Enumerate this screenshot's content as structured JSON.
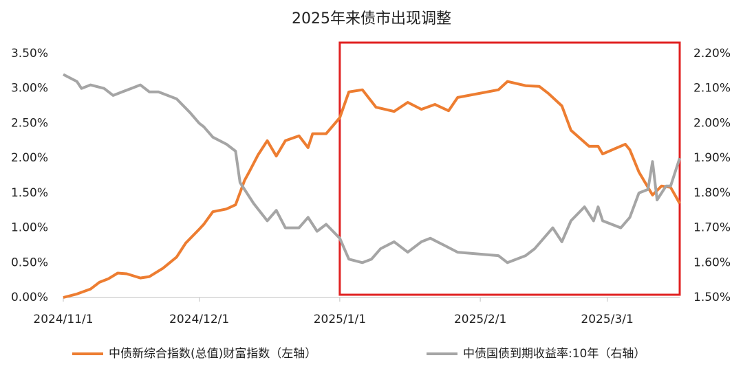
{
  "chart_data": {
    "type": "line",
    "title": "2025年来债市出现调整",
    "xlim": [
      "2024/11/1",
      "2025/3/17"
    ],
    "xticks": [
      "2024/11/1",
      "2024/12/1",
      "2025/1/1",
      "2025/2/1",
      "2025/3/1"
    ],
    "ylim": [
      0,
      3.5
    ],
    "yticks": [
      {
        "value": 0,
        "label": "0.00%"
      },
      {
        "value": 0.5,
        "label": "0.50%"
      },
      {
        "value": 1,
        "label": "1.00%"
      },
      {
        "value": 1.5,
        "label": "1.50%"
      },
      {
        "value": 2,
        "label": "2.00%"
      },
      {
        "value": 2.5,
        "label": "2.50%"
      },
      {
        "value": 3,
        "label": "3.00%"
      },
      {
        "value": 3.5,
        "label": "3.50%"
      }
    ],
    "y2lim": [
      1.5,
      2.2
    ],
    "y2ticks": [
      {
        "value": 1.5,
        "label": "1.50%"
      },
      {
        "value": 1.6,
        "label": "1.60%"
      },
      {
        "value": 1.7,
        "label": "1.70%"
      },
      {
        "value": 1.8,
        "label": "1.80%"
      },
      {
        "value": 1.9,
        "label": "1.90%"
      },
      {
        "value": 2.0,
        "label": "2.00%"
      },
      {
        "value": 2.1,
        "label": "2.10%"
      },
      {
        "value": 2.2,
        "label": "2.20%"
      }
    ],
    "series": [
      {
        "name": "中债新综合指数(总值)财富指数（左轴）",
        "color": "#ed7d31",
        "axis": "y",
        "x": [
          "2024/11/1",
          "2024/11/4",
          "2024/11/7",
          "2024/11/9",
          "2024/11/11",
          "2024/11/13",
          "2024/11/15",
          "2024/11/18",
          "2024/11/20",
          "2024/11/23",
          "2024/11/26",
          "2024/11/28",
          "2024/12/1",
          "2024/12/2",
          "2024/12/4",
          "2024/12/7",
          "2024/12/9",
          "2024/12/11",
          "2024/12/12",
          "2024/12/14",
          "2024/12/16",
          "2024/12/18",
          "2024/12/20",
          "2024/12/23",
          "2024/12/25",
          "2024/12/26",
          "2024/12/29",
          "2025/1/1",
          "2025/1/3",
          "2025/1/6",
          "2025/1/9",
          "2025/1/13",
          "2025/1/16",
          "2025/1/19",
          "2025/1/22",
          "2025/1/25",
          "2025/1/27",
          "2025/2/5",
          "2025/2/7",
          "2025/2/11",
          "2025/2/14",
          "2025/2/16",
          "2025/2/19",
          "2025/2/21",
          "2025/2/25",
          "2025/2/27",
          "2025/2/28",
          "2025/3/5",
          "2025/3/6",
          "2025/3/8",
          "2025/3/11",
          "2025/3/13",
          "2025/3/15",
          "2025/3/17"
        ],
        "values": [
          0.0,
          0.05,
          0.12,
          0.22,
          0.27,
          0.35,
          0.34,
          0.28,
          0.3,
          0.42,
          0.58,
          0.78,
          0.98,
          1.05,
          1.23,
          1.27,
          1.33,
          1.68,
          1.8,
          2.05,
          2.25,
          2.03,
          2.25,
          2.32,
          2.15,
          2.35,
          2.35,
          2.58,
          2.95,
          2.98,
          2.73,
          2.67,
          2.8,
          2.7,
          2.77,
          2.68,
          2.87,
          2.98,
          3.1,
          3.04,
          3.03,
          2.93,
          2.75,
          2.4,
          2.17,
          2.17,
          2.06,
          2.2,
          2.12,
          1.8,
          1.47,
          1.6,
          1.58,
          1.35
        ]
      },
      {
        "name": "中债国债到期收益率:10年（右轴）",
        "color": "#a5a5a5",
        "axis": "y2",
        "x": [
          "2024/11/1",
          "2024/11/4",
          "2024/11/5",
          "2024/11/7",
          "2024/11/10",
          "2024/11/12",
          "2024/11/14",
          "2024/11/16",
          "2024/11/18",
          "2024/11/20",
          "2024/11/22",
          "2024/11/26",
          "2024/11/29",
          "2024/12/1",
          "2024/12/2",
          "2024/12/4",
          "2024/12/7",
          "2024/12/9",
          "2024/12/10",
          "2024/12/13",
          "2024/12/16",
          "2024/12/18",
          "2024/12/20",
          "2024/12/23",
          "2024/12/25",
          "2024/12/27",
          "2024/12/29",
          "2025/1/1",
          "2025/1/3",
          "2025/1/6",
          "2025/1/8",
          "2025/1/10",
          "2025/1/13",
          "2025/1/16",
          "2025/1/19",
          "2025/1/21",
          "2025/1/24",
          "2025/1/27",
          "2025/2/5",
          "2025/2/7",
          "2025/2/11",
          "2025/2/13",
          "2025/2/17",
          "2025/2/19",
          "2025/2/21",
          "2025/2/24",
          "2025/2/26",
          "2025/2/27",
          "2025/2/28",
          "2025/3/4",
          "2025/3/6",
          "2025/3/8",
          "2025/3/10",
          "2025/3/11",
          "2025/3/12",
          "2025/3/14",
          "2025/3/15",
          "2025/3/17"
        ],
        "values": [
          2.14,
          2.12,
          2.1,
          2.11,
          2.1,
          2.08,
          2.09,
          2.1,
          2.11,
          2.09,
          2.09,
          2.07,
          2.03,
          2.0,
          1.99,
          1.96,
          1.94,
          1.92,
          1.83,
          1.77,
          1.72,
          1.75,
          1.7,
          1.7,
          1.73,
          1.69,
          1.71,
          1.67,
          1.61,
          1.6,
          1.61,
          1.64,
          1.66,
          1.63,
          1.66,
          1.67,
          1.65,
          1.63,
          1.62,
          1.6,
          1.62,
          1.64,
          1.7,
          1.66,
          1.72,
          1.76,
          1.72,
          1.76,
          1.72,
          1.7,
          1.73,
          1.8,
          1.81,
          1.89,
          1.78,
          1.82,
          1.82,
          1.9
        ]
      }
    ]
  }
}
